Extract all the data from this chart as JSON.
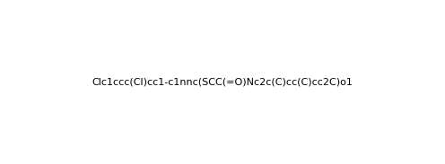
{
  "smiles": "Clc1ccc(Cl)cc1-c1nnc(SCC(=O)Nc2c(C)cc(C)cc2C)o1",
  "title": "",
  "bg_color": "#ffffff",
  "line_color": "#1a1a4a",
  "figsize": [
    4.96,
    1.83
  ],
  "dpi": 100
}
